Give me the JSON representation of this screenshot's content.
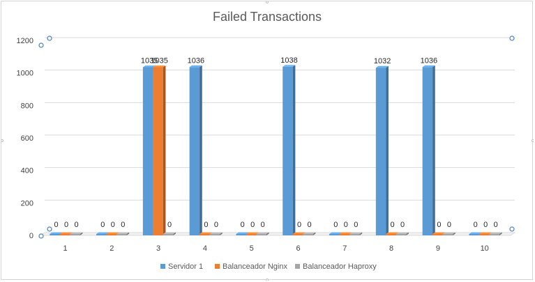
{
  "chart_data": {
    "type": "bar",
    "style": "3d-clustered-column",
    "title": "Failed Transactions",
    "xlabel": "",
    "ylabel": "",
    "ylim": [
      0,
      1200
    ],
    "yticks": [
      0,
      200,
      400,
      600,
      800,
      1000,
      1200
    ],
    "categories": [
      "1",
      "2",
      "3",
      "4",
      "5",
      "6",
      "7",
      "8",
      "9",
      "10"
    ],
    "series": [
      {
        "name": "Servidor 1",
        "color": "#5b9bd5",
        "values": [
          0,
          0,
          1035,
          1036,
          0,
          1038,
          0,
          1032,
          1036,
          0
        ]
      },
      {
        "name": "Balanceador Nginx",
        "color": "#ed7d31",
        "values": [
          0,
          0,
          1035,
          0,
          0,
          0,
          0,
          0,
          0,
          0
        ]
      },
      {
        "name": "Balanceador Haproxy",
        "color": "#a5a5a5",
        "values": [
          0,
          0,
          0,
          0,
          0,
          0,
          0,
          0,
          0,
          0
        ]
      }
    ],
    "data_labels": [
      [
        "0",
        "0",
        "1035",
        "1036",
        "0",
        "1038",
        "0",
        "1032",
        "1036",
        "0"
      ],
      [
        "0",
        "0",
        "1035",
        "0",
        "0",
        "0",
        "0",
        "0",
        "0",
        "0"
      ],
      [
        "0",
        "0",
        "0",
        "0",
        "0",
        "0",
        "0",
        "0",
        "0",
        "0"
      ]
    ],
    "grid": true,
    "legend": "bottom"
  }
}
